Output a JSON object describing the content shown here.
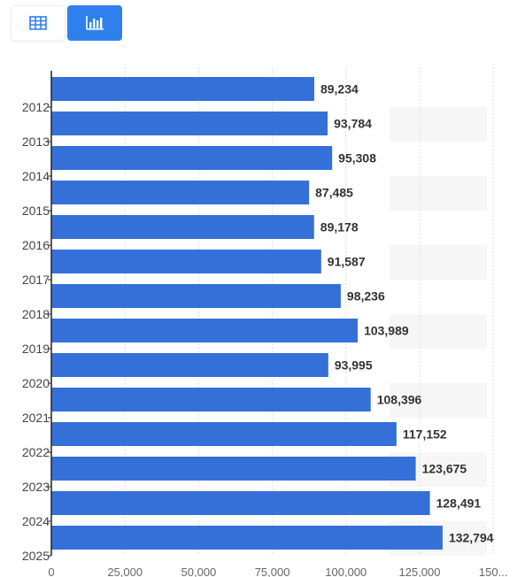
{
  "toolbar": {
    "buttons": [
      {
        "name": "table-view",
        "icon": "table-icon",
        "active": false
      },
      {
        "name": "chart-view",
        "icon": "bar-chart-icon",
        "active": true
      }
    ]
  },
  "colors": {
    "bar": "#3470d8",
    "active_button": "#2f80ed",
    "grid": "#dddddd",
    "stripe": "#f6f6f6"
  },
  "chart_data": {
    "type": "bar",
    "orientation": "horizontal",
    "title": "",
    "xlabel": "",
    "ylabel": "",
    "y_ticks": [
      "2012",
      "2013",
      "2014",
      "2015",
      "2016",
      "2017",
      "2018",
      "2019",
      "2020",
      "2021",
      "2022",
      "2023",
      "2024",
      "2025"
    ],
    "x_ticks": [
      "0",
      "25,000",
      "50,000",
      "75,000",
      "100,000",
      "125,000",
      "150..."
    ],
    "xlim": [
      0,
      150000
    ],
    "grid": true,
    "values": [
      89234,
      93784,
      95308,
      87485,
      89178,
      91587,
      98236,
      103989,
      93995,
      108396,
      117152,
      123675,
      128491,
      132794
    ],
    "value_labels": [
      "89,234",
      "93,784",
      "95,308",
      "87,485",
      "89,178",
      "91,587",
      "98,236",
      "103,989",
      "93,995",
      "108,396",
      "117,152",
      "123,675",
      "128,491",
      "132,794"
    ]
  }
}
